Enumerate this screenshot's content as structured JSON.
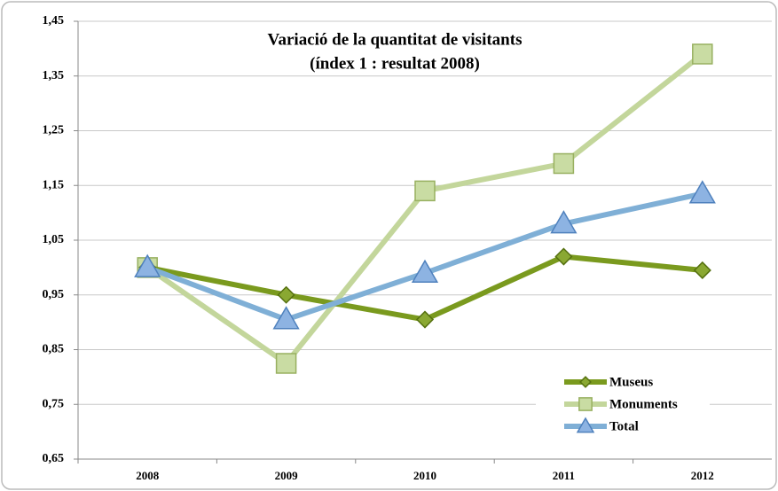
{
  "chart_data": {
    "type": "line",
    "title": "Variació de la quantitat de visitants",
    "subtitle": "(índex 1 : resultat 2008)",
    "categories": [
      "2008",
      "2009",
      "2010",
      "2011",
      "2012"
    ],
    "series": [
      {
        "name": "Museus",
        "color": "#7a9a1e",
        "marker": "diamond",
        "values": [
          1.0,
          0.95,
          0.905,
          1.02,
          0.995
        ]
      },
      {
        "name": "Monuments",
        "color": "#c3d69b",
        "marker": "square",
        "values": [
          1.0,
          0.825,
          1.14,
          1.19,
          1.39
        ]
      },
      {
        "name": "Total",
        "color": "#7fafd6",
        "marker": "triangle",
        "values": [
          1.0,
          0.905,
          0.99,
          1.08,
          1.135
        ]
      }
    ],
    "ylim": [
      0.65,
      1.45
    ],
    "yticks": [
      {
        "value": 0.65,
        "label": "0,65"
      },
      {
        "value": 0.75,
        "label": "0,75"
      },
      {
        "value": 0.85,
        "label": "0,85"
      },
      {
        "value": 0.95,
        "label": "0,95"
      },
      {
        "value": 1.05,
        "label": "1,05"
      },
      {
        "value": 1.15,
        "label": "1,15"
      },
      {
        "value": 1.25,
        "label": "1,25"
      },
      {
        "value": 1.35,
        "label": "1,35"
      },
      {
        "value": 1.45,
        "label": "1,45"
      }
    ],
    "grid": true,
    "legend": "lower right"
  }
}
